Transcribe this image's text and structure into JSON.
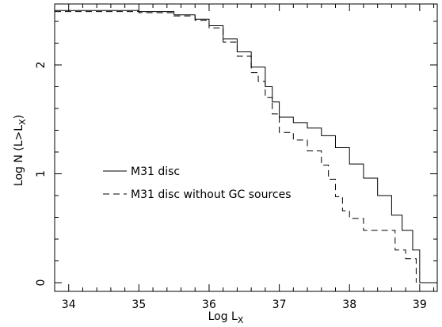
{
  "chart_data": {
    "type": "line",
    "title": "",
    "xlabel": "Log L",
    "xlabel_sub": "X",
    "ylabel": "Log N (L>L",
    "ylabel_sub": "X",
    "ylabel_close": ")",
    "xlim": [
      33.8,
      39.25
    ],
    "ylim": [
      -0.08,
      2.56
    ],
    "x_ticks": [
      34,
      35,
      36,
      37,
      38,
      39
    ],
    "x_tick_labels": [
      "34",
      "35",
      "36",
      "37",
      "38",
      "39"
    ],
    "y_ticks": [
      0,
      1,
      2
    ],
    "y_tick_labels": [
      "0",
      "1",
      "2"
    ],
    "grid": false,
    "legend_position": "middle-left",
    "series": [
      {
        "name": "M31 disc",
        "style": "solid",
        "color": "#000000",
        "x": [
          33.8,
          34.0,
          34.5,
          35.0,
          35.5,
          35.8,
          36.0,
          36.2,
          36.4,
          36.6,
          36.8,
          36.9,
          37.0,
          37.2,
          37.4,
          37.6,
          37.8,
          38.0,
          38.2,
          38.4,
          38.6,
          38.75,
          38.9,
          39.0,
          39.25
        ],
        "y": [
          2.5,
          2.5,
          2.5,
          2.49,
          2.46,
          2.42,
          2.36,
          2.24,
          2.12,
          1.98,
          1.8,
          1.66,
          1.52,
          1.47,
          1.42,
          1.35,
          1.24,
          1.09,
          0.96,
          0.8,
          0.62,
          0.48,
          0.3,
          0.0,
          0.0
        ]
      },
      {
        "name": "M31 disc without GC sources",
        "style": "dashed",
        "color": "#000000",
        "x": [
          33.8,
          34.0,
          34.5,
          35.0,
          35.5,
          35.8,
          36.0,
          36.2,
          36.4,
          36.6,
          36.7,
          36.8,
          36.9,
          37.0,
          37.2,
          37.4,
          37.6,
          37.7,
          37.8,
          37.9,
          38.0,
          38.2,
          38.5,
          38.65,
          38.8,
          38.95
        ],
        "y": [
          2.49,
          2.49,
          2.49,
          2.48,
          2.45,
          2.41,
          2.34,
          2.21,
          2.08,
          1.93,
          1.85,
          1.7,
          1.55,
          1.38,
          1.31,
          1.21,
          1.08,
          0.95,
          0.79,
          0.66,
          0.59,
          0.48,
          0.48,
          0.3,
          0.22,
          0.0
        ]
      }
    ]
  }
}
